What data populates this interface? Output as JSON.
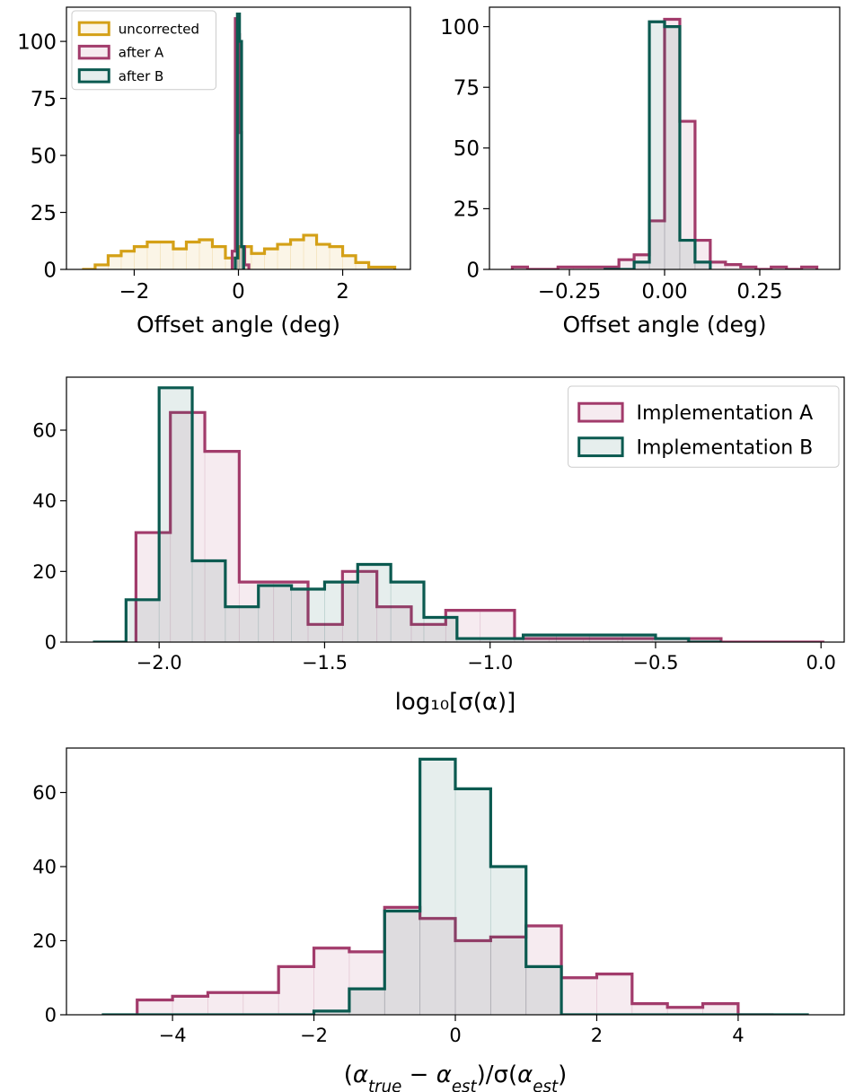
{
  "colors": {
    "uncorrected": "#d4a017",
    "after_A": "#a23b6b",
    "after_B": "#0b5a50",
    "axis": "#000000"
  },
  "chart_data": [
    {
      "type": "histogram",
      "panel": "top-left",
      "xlabel": "Offset angle (deg)",
      "ylabel": "",
      "xlim": [
        -3.3,
        3.3
      ],
      "ylim": [
        0,
        115
      ],
      "xticks": [
        -2,
        0,
        2
      ],
      "xtick_labels": [
        "−2",
        "0",
        "2"
      ],
      "yticks": [
        0,
        25,
        50,
        75,
        100
      ],
      "ytick_labels": [
        "0",
        "25",
        "50",
        "75",
        "100"
      ],
      "legend": {
        "position": "top-left",
        "labels": [
          "uncorrected",
          "after A",
          "after B"
        ]
      },
      "series": [
        {
          "name": "uncorrected",
          "color_key": "uncorrected",
          "edges": [
            -3.0,
            -2.75,
            -2.5,
            -2.25,
            -2.0,
            -1.75,
            -1.5,
            -1.25,
            -1.0,
            -0.75,
            -0.5,
            -0.25,
            0.0,
            0.25,
            0.5,
            0.75,
            1.0,
            1.25,
            1.5,
            1.75,
            2.0,
            2.25,
            2.5,
            2.75,
            3.0
          ],
          "counts": [
            0,
            2,
            6,
            8,
            10,
            12,
            12,
            9,
            12,
            13,
            10,
            5,
            10,
            7,
            9,
            11,
            13,
            15,
            11,
            10,
            6,
            3,
            1,
            1
          ]
        },
        {
          "name": "after A",
          "color_key": "after_A",
          "edges": [
            -0.12,
            -0.06,
            -0.02,
            0.02,
            0.06,
            0.12,
            0.2
          ],
          "counts": [
            8,
            110,
            103,
            60,
            10,
            2
          ]
        },
        {
          "name": "after B",
          "color_key": "after_B",
          "edges": [
            -0.06,
            -0.02,
            0.02,
            0.06,
            0.1
          ],
          "counts": [
            5,
            112,
            100,
            10
          ]
        }
      ]
    },
    {
      "type": "histogram",
      "panel": "top-right",
      "xlabel": "Offset angle (deg)",
      "ylabel": "",
      "xlim": [
        -0.46,
        0.46
      ],
      "ylim": [
        0,
        108
      ],
      "xticks": [
        -0.25,
        0.0,
        0.25
      ],
      "xtick_labels": [
        "−0.25",
        "0.00",
        "0.25"
      ],
      "yticks": [
        0,
        25,
        50,
        75,
        100
      ],
      "ytick_labels": [
        "0",
        "25",
        "50",
        "75",
        "100"
      ],
      "series": [
        {
          "name": "after A",
          "color_key": "after_A",
          "edges": [
            -0.4,
            -0.36,
            -0.32,
            -0.28,
            -0.24,
            -0.2,
            -0.16,
            -0.12,
            -0.08,
            -0.04,
            0.0,
            0.04,
            0.08,
            0.12,
            0.16,
            0.2,
            0.24,
            0.28,
            0.32,
            0.36,
            0.4
          ],
          "counts": [
            1,
            0,
            0,
            1,
            1,
            1,
            1,
            4,
            6,
            20,
            103,
            61,
            12,
            3,
            2,
            1,
            0,
            1,
            0,
            1
          ]
        },
        {
          "name": "after B",
          "color_key": "after_B",
          "edges": [
            -0.16,
            -0.12,
            -0.08,
            -0.04,
            0.0,
            0.04,
            0.08,
            0.12
          ],
          "counts": [
            0,
            0,
            3,
            102,
            100,
            12,
            3
          ]
        }
      ]
    },
    {
      "type": "histogram",
      "panel": "middle",
      "xlabel": "log₁₀[σ(α)]",
      "ylabel": "",
      "xlim": [
        -2.28,
        0.07
      ],
      "ylim": [
        0,
        75
      ],
      "xticks": [
        -2.0,
        -1.5,
        -1.0,
        -0.5,
        0.0
      ],
      "xtick_labels": [
        "−2.0",
        "−1.5",
        "−1.0",
        "−0.5",
        "0.0"
      ],
      "yticks": [
        0,
        20,
        40,
        60
      ],
      "ytick_labels": [
        "0",
        "20",
        "40",
        "60"
      ],
      "legend": {
        "position": "top-right",
        "labels": [
          "Implementation A",
          "Implementation B"
        ]
      },
      "series": [
        {
          "name": "Implementation A",
          "color_key": "after_A",
          "edges": [
            -2.07,
            -1.966,
            -1.862,
            -1.758,
            -1.654,
            -1.55,
            -1.446,
            -1.342,
            -1.238,
            -1.134,
            -1.03,
            -0.926,
            -0.822,
            -0.718,
            -0.614,
            -0.51,
            -0.406,
            -0.302,
            -0.198,
            -0.094,
            0.01
          ],
          "counts": [
            31,
            65,
            54,
            17,
            17,
            5,
            20,
            10,
            5,
            9,
            9,
            1,
            1,
            1,
            1,
            1,
            1,
            0,
            0,
            0
          ]
        },
        {
          "name": "Implementation B",
          "color_key": "after_B",
          "edges": [
            -2.2,
            -2.1,
            -2.0,
            -1.9,
            -1.8,
            -1.7,
            -1.6,
            -1.5,
            -1.4,
            -1.3,
            -1.2,
            -1.1,
            -1.0,
            -0.9,
            -0.8,
            -0.7,
            -0.6,
            -0.5,
            -0.4,
            -0.3
          ],
          "counts": [
            0,
            12,
            72,
            23,
            10,
            16,
            15,
            17,
            22,
            17,
            7,
            1,
            1,
            2,
            2,
            2,
            2,
            1,
            0
          ]
        }
      ]
    },
    {
      "type": "histogram",
      "panel": "bottom",
      "xlabel": "(α_true − α_est)/σ(α_est)",
      "ylabel": "",
      "xlim": [
        -5.5,
        5.5
      ],
      "ylim": [
        0,
        72
      ],
      "xticks": [
        -4,
        -2,
        0,
        2,
        4
      ],
      "xtick_labels": [
        "−4",
        "−2",
        "0",
        "2",
        "4"
      ],
      "yticks": [
        0,
        20,
        40,
        60
      ],
      "ytick_labels": [
        "0",
        "20",
        "40",
        "60"
      ],
      "series": [
        {
          "name": "Implementation A",
          "color_key": "after_A",
          "edges": [
            -4.5,
            -4.0,
            -3.5,
            -3.0,
            -2.5,
            -2.0,
            -1.5,
            -1.0,
            -0.5,
            0.0,
            0.5,
            1.0,
            1.5,
            2.0,
            2.5,
            3.0,
            3.5,
            4.0,
            4.5
          ],
          "counts": [
            4,
            5,
            6,
            6,
            13,
            18,
            17,
            29,
            26,
            20,
            21,
            24,
            10,
            11,
            3,
            2,
            3,
            0
          ]
        },
        {
          "name": "Implementation B",
          "color_key": "after_B",
          "edges": [
            -5.0,
            -4.5,
            -4.0,
            -3.5,
            -3.0,
            -2.5,
            -2.0,
            -1.5,
            -1.0,
            -0.5,
            0.0,
            0.5,
            1.0,
            1.5,
            2.0,
            2.5,
            3.0,
            3.5,
            4.0,
            4.5,
            5.0
          ],
          "counts": [
            0,
            0,
            0,
            0,
            0,
            0,
            1,
            7,
            28,
            69,
            61,
            40,
            13,
            0,
            0,
            0,
            0,
            0,
            0,
            0
          ]
        }
      ]
    }
  ]
}
